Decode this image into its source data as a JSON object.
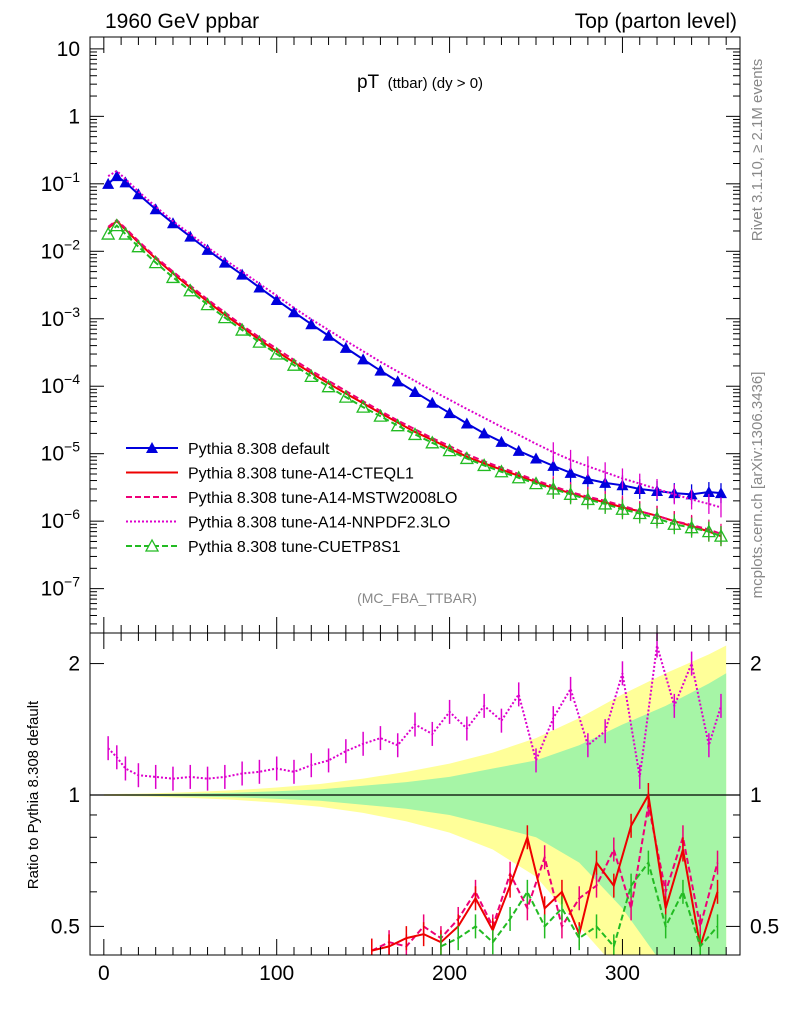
{
  "header": {
    "left": "1960 GeV ppbar",
    "right": "Top (parton level)"
  },
  "side": {
    "rivet": "Rivet 3.1.10, ≥ 2.1M events",
    "mcplots": "mcplots.cern.ch [arXiv:1306.3436]"
  },
  "plot_title": {
    "main": "pT",
    "sub": "(ttbar) (dy > 0)"
  },
  "analysis_id": "(MC_FBA_TTBAR)",
  "ratio_ylabel": "Ratio to Pythia 8.308 default",
  "top_yticks": [
    {
      "v": 10,
      "base": "10",
      "exp": ""
    },
    {
      "v": 1,
      "base": "1",
      "exp": ""
    },
    {
      "v": 0.1,
      "base": "10",
      "exp": "−1"
    },
    {
      "v": 0.01,
      "base": "10",
      "exp": "−2"
    },
    {
      "v": 0.001,
      "base": "10",
      "exp": "−3"
    },
    {
      "v": 0.0001,
      "base": "10",
      "exp": "−4"
    },
    {
      "v": 1e-05,
      "base": "10",
      "exp": "−5"
    },
    {
      "v": 1e-06,
      "base": "10",
      "exp": "−6"
    },
    {
      "v": 1e-07,
      "base": "10",
      "exp": "−7"
    }
  ],
  "ratio_yticks": [
    "0.5",
    "1",
    "2"
  ],
  "xticks": [
    "0",
    "100",
    "200",
    "300"
  ],
  "chart_data": {
    "type": "line",
    "xlim": [
      -8,
      368
    ],
    "ylim": [
      2.2e-08,
      15
    ],
    "yscale": "log",
    "ratio_ylim": [
      0.43,
      2.35
    ],
    "ratio_yscale": "log",
    "legend_position": "lower-left",
    "series": [
      {
        "name": "Pythia 8.308 default",
        "color": "#0000dd",
        "style": "solid",
        "marker": "triangle-filled",
        "x": [
          2.5,
          7.5,
          12.5,
          20,
          30,
          40,
          50,
          60,
          70,
          80,
          90,
          100,
          110,
          120,
          130,
          140,
          150,
          160,
          170,
          180,
          190,
          200,
          210,
          220,
          230,
          240,
          250,
          260,
          270,
          280,
          290,
          300,
          310,
          320,
          330,
          340,
          350,
          357
        ],
        "y": [
          0.1,
          0.13,
          0.105,
          0.07,
          0.042,
          0.026,
          0.0165,
          0.0105,
          0.0068,
          0.0045,
          0.0029,
          0.0019,
          0.00125,
          0.00083,
          0.00056,
          0.00037,
          0.00025,
          0.00017,
          0.000118,
          8.2e-05,
          5.7e-05,
          4e-05,
          2.8e-05,
          2e-05,
          1.5e-05,
          1.1e-05,
          8.5e-06,
          6.6e-06,
          5.2e-06,
          4.2e-06,
          3.7e-06,
          3.4e-06,
          3e-06,
          2.8e-06,
          2.6e-06,
          2.5e-06,
          2.7e-06,
          2.6e-06
        ]
      },
      {
        "name": "Pythia 8.308 tune-A14-CTEQL1",
        "color": "#ee0000",
        "style": "solid",
        "marker": "none",
        "x": [
          2.5,
          7.5,
          12.5,
          20,
          30,
          40,
          50,
          60,
          70,
          80,
          90,
          100,
          110,
          120,
          130,
          140,
          150,
          160,
          170,
          180,
          190,
          200,
          210,
          220,
          230,
          240,
          250,
          260,
          270,
          280,
          290,
          300,
          310,
          320,
          330,
          340,
          350,
          357
        ],
        "y": [
          0.022,
          0.028,
          0.021,
          0.0135,
          0.0078,
          0.0047,
          0.0029,
          0.0018,
          0.00115,
          0.00075,
          0.00049,
          0.00033,
          0.000225,
          0.000157,
          0.00011,
          7.8e-05,
          5.6e-05,
          4e-05,
          2.9e-05,
          2.1e-05,
          1.6e-05,
          1.2e-05,
          9e-06,
          7.2e-06,
          5.8e-06,
          4.7e-06,
          3.8e-06,
          3.1e-06,
          2.6e-06,
          2.2e-06,
          1.9e-06,
          1.6e-06,
          1.4e-06,
          1.2e-06,
          1e-06,
          8.5e-07,
          7e-07,
          6e-07
        ]
      },
      {
        "name": "Pythia 8.308 tune-A14-MSTW2008LO",
        "color": "#ee0077",
        "style": "dashed",
        "marker": "none",
        "x": [
          2.5,
          7.5,
          12.5,
          20,
          30,
          40,
          50,
          60,
          70,
          80,
          90,
          100,
          110,
          120,
          130,
          140,
          150,
          160,
          170,
          180,
          190,
          200,
          210,
          220,
          230,
          240,
          250,
          260,
          270,
          280,
          290,
          300,
          310,
          320,
          330,
          340,
          350,
          357
        ],
        "y": [
          0.023,
          0.029,
          0.022,
          0.0142,
          0.0082,
          0.005,
          0.0031,
          0.00193,
          0.00124,
          0.0008,
          0.00053,
          0.00036,
          0.000245,
          0.00017,
          0.00012,
          8.5e-05,
          6e-05,
          4.3e-05,
          3.1e-05,
          2.3e-05,
          1.7e-05,
          1.3e-05,
          9.8e-06,
          7.7e-06,
          6.2e-06,
          5e-06,
          4e-06,
          3.3e-06,
          2.7e-06,
          2.3e-06,
          2e-06,
          1.7e-06,
          1.4e-06,
          1.2e-06,
          1e-06,
          8.8e-07,
          7.5e-07,
          6.5e-07
        ]
      },
      {
        "name": "Pythia 8.308 tune-A14-NNPDF2.3LO",
        "color": "#dd00cc",
        "style": "dotted",
        "marker": "none",
        "x": [
          2.5,
          7.5,
          12.5,
          20,
          30,
          40,
          50,
          60,
          70,
          80,
          90,
          100,
          110,
          120,
          130,
          140,
          150,
          160,
          170,
          180,
          190,
          200,
          210,
          220,
          230,
          240,
          250,
          260,
          270,
          280,
          290,
          300,
          310,
          320,
          330,
          340,
          350,
          357
        ],
        "y": [
          0.13,
          0.155,
          0.118,
          0.077,
          0.046,
          0.028,
          0.018,
          0.0115,
          0.0075,
          0.005,
          0.0033,
          0.0022,
          0.00145,
          0.00098,
          0.00068,
          0.00047,
          0.00033,
          0.00023,
          0.000165,
          0.00012,
          8.6e-05,
          6.3e-05,
          4.6e-05,
          3.4e-05,
          2.5e-05,
          1.9e-05,
          1.4e-05,
          1.05e-05,
          8.1e-06,
          6.5e-06,
          5.3e-06,
          4.3e-06,
          3.6e-06,
          3e-06,
          2.5e-06,
          2.1e-06,
          1.8e-06,
          1.6e-06
        ]
      },
      {
        "name": "Pythia 8.308 tune-CUETP8S1",
        "color": "#22bb22",
        "style": "dashed",
        "marker": "triangle-open",
        "x": [
          2.5,
          7.5,
          12.5,
          20,
          30,
          40,
          50,
          60,
          70,
          80,
          90,
          100,
          110,
          120,
          130,
          140,
          150,
          160,
          170,
          180,
          190,
          200,
          210,
          220,
          230,
          240,
          250,
          260,
          270,
          280,
          290,
          300,
          310,
          320,
          330,
          340,
          350,
          357
        ],
        "y": [
          0.018,
          0.024,
          0.018,
          0.0117,
          0.0068,
          0.0041,
          0.0026,
          0.00162,
          0.00104,
          0.00068,
          0.00045,
          0.0003,
          0.000205,
          0.00014,
          9.85e-05,
          6.9e-05,
          4.9e-05,
          3.6e-05,
          2.6e-05,
          1.93e-05,
          1.45e-05,
          1.11e-05,
          8.5e-06,
          6.7e-06,
          5.4e-06,
          4.4e-06,
          3.6e-06,
          3e-06,
          2.5e-06,
          2.1e-06,
          1.8e-06,
          1.5e-06,
          1.3e-06,
          1.1e-06,
          9e-07,
          8e-07,
          7e-07,
          6e-07
        ]
      }
    ],
    "ratio_series": [
      {
        "name": "Pythia 8.308 tune-A14-NNPDF2.3LO",
        "color": "#dd00cc",
        "style": "dotted",
        "x": [
          2.5,
          7.5,
          12.5,
          20,
          30,
          40,
          50,
          60,
          70,
          80,
          90,
          100,
          110,
          120,
          130,
          140,
          150,
          160,
          170,
          180,
          190,
          200,
          210,
          220,
          230,
          240,
          250,
          260,
          270,
          280,
          290,
          300,
          310,
          320,
          330,
          340,
          350,
          357
        ],
        "y": [
          1.28,
          1.22,
          1.15,
          1.11,
          1.1,
          1.09,
          1.1,
          1.09,
          1.1,
          1.12,
          1.13,
          1.15,
          1.13,
          1.17,
          1.2,
          1.26,
          1.31,
          1.35,
          1.3,
          1.45,
          1.38,
          1.55,
          1.42,
          1.6,
          1.48,
          1.7,
          1.2,
          1.5,
          1.75,
          1.3,
          1.4,
          1.9,
          1.1,
          2.2,
          1.6,
          2.0,
          1.3,
          1.6
        ]
      },
      {
        "name": "Pythia 8.308 tune-A14-MSTW2008LO",
        "color": "#ee0077",
        "style": "dashed",
        "x": [
          155,
          165,
          175,
          185,
          195,
          205,
          215,
          225,
          235,
          245,
          255,
          265,
          275,
          285,
          295,
          305,
          315,
          325,
          335,
          345,
          355
        ],
        "y": [
          0.44,
          0.46,
          0.45,
          0.5,
          0.47,
          0.52,
          0.6,
          0.5,
          0.66,
          0.55,
          0.72,
          0.5,
          0.58,
          0.62,
          0.75,
          0.55,
          0.95,
          0.6,
          0.8,
          0.5,
          0.7
        ]
      },
      {
        "name": "Pythia 8.308 tune-A14-CTEQL1",
        "color": "#ee0000",
        "style": "solid",
        "x": [
          155,
          165,
          175,
          185,
          195,
          205,
          215,
          225,
          235,
          245,
          255,
          265,
          275,
          285,
          295,
          305,
          315,
          325,
          335,
          345,
          355
        ],
        "y": [
          0.44,
          0.45,
          0.47,
          0.48,
          0.46,
          0.5,
          0.58,
          0.49,
          0.62,
          0.8,
          0.55,
          0.6,
          0.48,
          0.7,
          0.62,
          0.85,
          1.0,
          0.55,
          0.75,
          0.45,
          0.6
        ]
      },
      {
        "name": "Pythia 8.308 tune-CUETP8S1",
        "color": "#22bb22",
        "style": "dashed",
        "x": [
          195,
          205,
          215,
          225,
          235,
          245,
          255,
          265,
          275,
          285,
          295,
          305,
          315,
          325,
          335,
          345,
          355
        ],
        "y": [
          0.45,
          0.47,
          0.5,
          0.46,
          0.52,
          0.6,
          0.5,
          0.55,
          0.47,
          0.5,
          0.45,
          0.62,
          0.7,
          0.5,
          0.6,
          0.45,
          0.5
        ]
      }
    ],
    "uncertainty_band": {
      "x": [
        0,
        25,
        50,
        75,
        100,
        125,
        150,
        175,
        200,
        225,
        250,
        275,
        300,
        325,
        350,
        360
      ],
      "inner": [
        0.002,
        0.004,
        0.008,
        0.012,
        0.02,
        0.03,
        0.05,
        0.07,
        0.1,
        0.15,
        0.2,
        0.3,
        0.45,
        0.6,
        0.8,
        0.9
      ],
      "outer": [
        0.004,
        0.008,
        0.015,
        0.025,
        0.04,
        0.06,
        0.09,
        0.13,
        0.18,
        0.25,
        0.35,
        0.5,
        0.7,
        0.9,
        1.1,
        1.2
      ],
      "inner_color": "#a6f5a6",
      "outer_color": "#ffff99"
    }
  }
}
